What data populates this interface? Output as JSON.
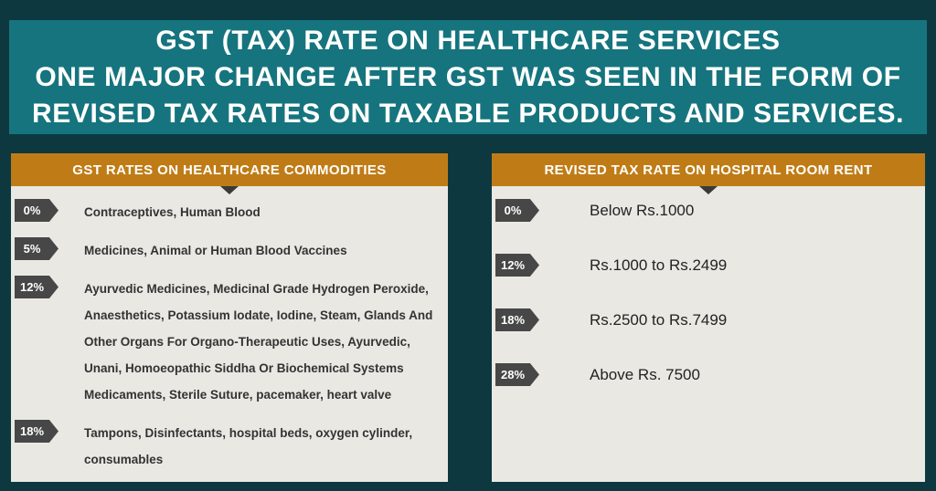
{
  "header": {
    "lines": [
      "GST (TAX) RATE ON HEALTHCARE SERVICES",
      "ONE MAJOR CHANGE AFTER GST WAS SEEN IN THE FORM OF",
      "REVISED TAX RATES ON TAXABLE PRODUCTS AND SERVICES."
    ]
  },
  "panels": [
    {
      "title": "GST RATES ON HEALTHCARE COMMODITIES",
      "rows": [
        {
          "rate": "0%",
          "description": "Contraceptives, Human Blood"
        },
        {
          "rate": "5%",
          "description": "Medicines, Animal or Human Blood Vaccines"
        },
        {
          "rate": "12%",
          "description": "Ayurvedic Medicines, Medicinal Grade Hydrogen Peroxide, Anaesthetics, Potassium Iodate, Iodine, Steam, Glands And Other Organs For Organo-Therapeutic Uses, Ayurvedic, Unani, Homoeopathic Siddha Or Biochemical Systems Medicaments, Sterile Suture, pacemaker, heart valve"
        },
        {
          "rate": "18%",
          "description": "Tampons, Disinfectants, hospital beds, oxygen cylinder, consumables"
        }
      ]
    },
    {
      "title": "REVISED TAX RATE ON HOSPITAL ROOM RENT",
      "rows": [
        {
          "rate": "0%",
          "description": "Below Rs.1000"
        },
        {
          "rate": "12%",
          "description": "Rs.1000 to Rs.2499"
        },
        {
          "rate": "18%",
          "description": "Rs.2500 to Rs.7499"
        },
        {
          "rate": "28%",
          "description": "Above Rs. 7500"
        }
      ]
    }
  ],
  "colors": {
    "background": "#0d3840",
    "banner_teal": "#16747e",
    "panel_header_orange": "#bf7c16",
    "panel_body_gray": "#e9e8e3",
    "tag_gray": "#474747",
    "text_white": "#ffffff"
  }
}
